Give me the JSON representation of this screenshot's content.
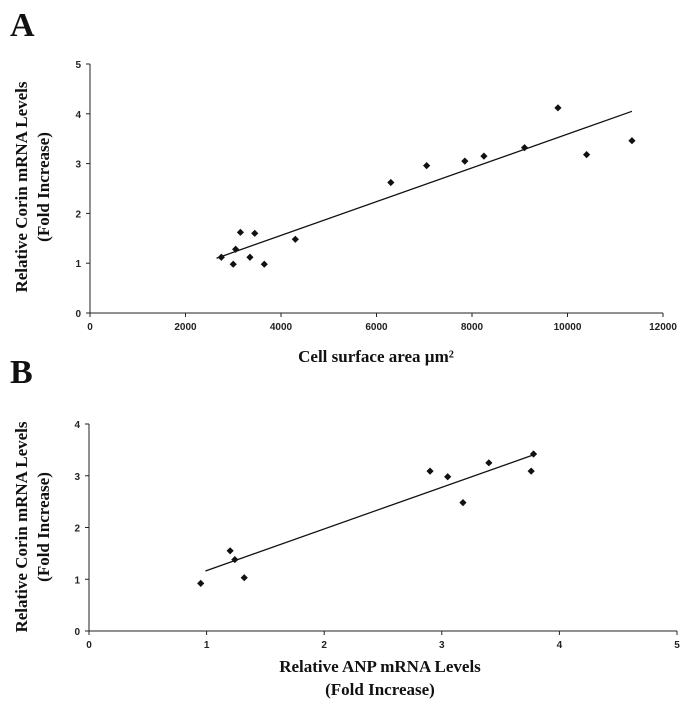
{
  "chart_data": [
    {
      "type": "scatter",
      "panel": "A",
      "xlabel": "Cell surface area µm²",
      "ylabel_line1": "Relative Corin mRNA Levels",
      "ylabel_line2": "(Fold Increase)",
      "xlim": [
        0,
        12000
      ],
      "ylim": [
        0,
        5
      ],
      "xticks": [
        0,
        2000,
        4000,
        6000,
        8000,
        10000,
        12000
      ],
      "yticks": [
        0,
        1,
        2,
        3,
        4,
        5
      ],
      "points": [
        {
          "x": 2750,
          "y": 1.12
        },
        {
          "x": 3000,
          "y": 0.98
        },
        {
          "x": 3050,
          "y": 1.28
        },
        {
          "x": 3150,
          "y": 1.62
        },
        {
          "x": 3350,
          "y": 1.12
        },
        {
          "x": 3450,
          "y": 1.6
        },
        {
          "x": 3650,
          "y": 0.98
        },
        {
          "x": 4300,
          "y": 1.48
        },
        {
          "x": 6300,
          "y": 2.62
        },
        {
          "x": 7050,
          "y": 2.96
        },
        {
          "x": 7850,
          "y": 3.05
        },
        {
          "x": 8250,
          "y": 3.15
        },
        {
          "x": 9100,
          "y": 3.32
        },
        {
          "x": 9800,
          "y": 4.12
        },
        {
          "x": 10400,
          "y": 3.18
        },
        {
          "x": 11350,
          "y": 3.46
        }
      ],
      "trendline": {
        "x": [
          2650,
          11350
        ],
        "y": [
          1.1,
          4.05
        ]
      },
      "grid": false
    },
    {
      "type": "scatter",
      "panel": "B",
      "xlabel_line1": "Relative ANP mRNA Levels",
      "xlabel_line2": "(Fold Increase)",
      "ylabel_line1": "Relative Corin mRNA Levels",
      "ylabel_line2": "(Fold Increase)",
      "xlim": [
        0,
        5
      ],
      "ylim": [
        0,
        4
      ],
      "xticks": [
        0,
        1,
        2,
        3,
        4,
        5
      ],
      "yticks": [
        0,
        1,
        2,
        3,
        4
      ],
      "points": [
        {
          "x": 0.95,
          "y": 0.92
        },
        {
          "x": 1.2,
          "y": 1.55
        },
        {
          "x": 1.24,
          "y": 1.38
        },
        {
          "x": 1.32,
          "y": 1.03
        },
        {
          "x": 2.9,
          "y": 3.09
        },
        {
          "x": 3.05,
          "y": 2.98
        },
        {
          "x": 3.18,
          "y": 2.48
        },
        {
          "x": 3.4,
          "y": 3.25
        },
        {
          "x": 3.76,
          "y": 3.09
        },
        {
          "x": 3.78,
          "y": 3.42
        }
      ],
      "trendline": {
        "x": [
          0.99,
          3.8
        ],
        "y": [
          1.16,
          3.42
        ]
      },
      "grid": false
    }
  ]
}
